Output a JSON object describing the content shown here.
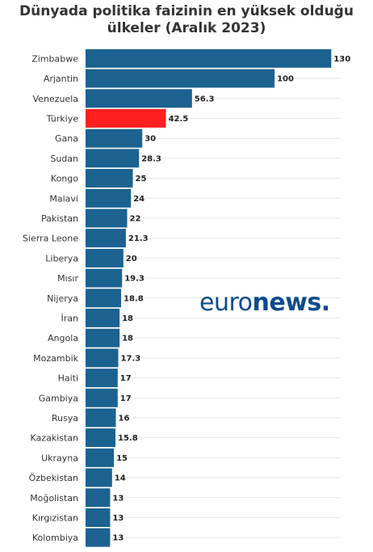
{
  "chart_data": {
    "type": "bar",
    "orientation": "horizontal",
    "title": [
      "Dünyada politika faizinin en yüksek olduğu",
      "ülkeler (Aralık 2023)"
    ],
    "xlabel": "",
    "ylabel": "",
    "xlim": [
      0,
      135
    ],
    "grid": true,
    "legend": "none",
    "categories": [
      "Zimbabwe",
      "Arjantin",
      "Venezuela",
      "Türkiye",
      "Gana",
      "Sudan",
      "Kongo",
      "Malavi",
      "Pakistan",
      "Sierra Leone",
      "Liberya",
      "Mısır",
      "Nijerya",
      "İran",
      "Angola",
      "Mozambik",
      "Haiti",
      "Gambiya",
      "Rusya",
      "Kazakistan",
      "Ukrayna",
      "Özbekistan",
      "Moğolistan",
      "Kırgızistan",
      "Kolombiya"
    ],
    "values": [
      130,
      100,
      56.3,
      42.5,
      30,
      28.3,
      25,
      24,
      22,
      21.3,
      20,
      19.3,
      18.8,
      18,
      18,
      17.3,
      17,
      17,
      16,
      15.8,
      15,
      14,
      13,
      13,
      13
    ],
    "value_labels": [
      "130",
      "100",
      "56.3",
      "42.5",
      "30",
      "28.3",
      "25",
      "24",
      "22",
      "21.3",
      "20",
      "19.3",
      "18.8",
      "18",
      "18",
      "17.3",
      "17",
      "17",
      "16",
      "15.8",
      "15",
      "14",
      "13",
      "13",
      "13"
    ],
    "colors": {
      "default": "#1b6290",
      "highlight": "#ff2020"
    },
    "highlight_category": "Türkiye"
  },
  "logo": {
    "part1": "euro",
    "part2": "news",
    "part3": "."
  }
}
